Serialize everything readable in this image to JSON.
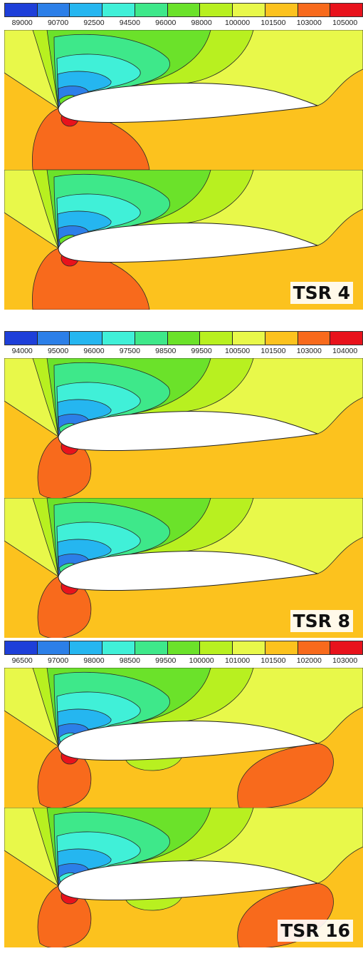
{
  "colors": [
    "#1e3fd9",
    "#2c7fe8",
    "#25b6f0",
    "#40f0d8",
    "#3ee88a",
    "#6be22a",
    "#b8f020",
    "#e8f84a",
    "#fcc21e",
    "#f86a1c",
    "#e8121c"
  ],
  "groups": [
    {
      "ticks": [
        "89000",
        "90700",
        "92500",
        "94500",
        "96000",
        "98000",
        "100000",
        "101500",
        "103000",
        "105000"
      ],
      "label": "TSR 4",
      "panels": [
        {
          "field": "L1",
          "suction": 5,
          "stag": 9,
          "stagCore": 10,
          "lowBulge": true,
          "wakeBubble": false
        },
        {
          "field": "L1",
          "suction": 5,
          "stag": 9,
          "stagCore": 10,
          "lowBulge": true,
          "wakeBubble": false
        }
      ]
    },
    {
      "ticks": [
        "94000",
        "95000",
        "96000",
        "97500",
        "98500",
        "99500",
        "100500",
        "101500",
        "103000",
        "104000"
      ],
      "label": "TSR 8",
      "panels": [
        {
          "field": "L2",
          "suction": 4,
          "stag": 9,
          "stagCore": 10,
          "lowBulge": false,
          "wakeBubble": false
        },
        {
          "field": "L2",
          "suction": 4,
          "stag": 9,
          "stagCore": 10,
          "lowBulge": false,
          "wakeBubble": false
        }
      ]
    },
    {
      "ticks": [
        "96500",
        "97000",
        "98000",
        "98500",
        "99500",
        "100000",
        "101000",
        "101500",
        "102000",
        "103000"
      ],
      "label": "TSR 16",
      "panels": [
        {
          "field": "L3",
          "suction": 3,
          "stag": 9,
          "stagCore": 10,
          "lowBulge": false,
          "wakeBubble": true
        },
        {
          "field": "L3",
          "suction": 3,
          "stag": 9,
          "stagCore": 10,
          "lowBulge": false,
          "wakeBubble": true
        }
      ]
    }
  ]
}
